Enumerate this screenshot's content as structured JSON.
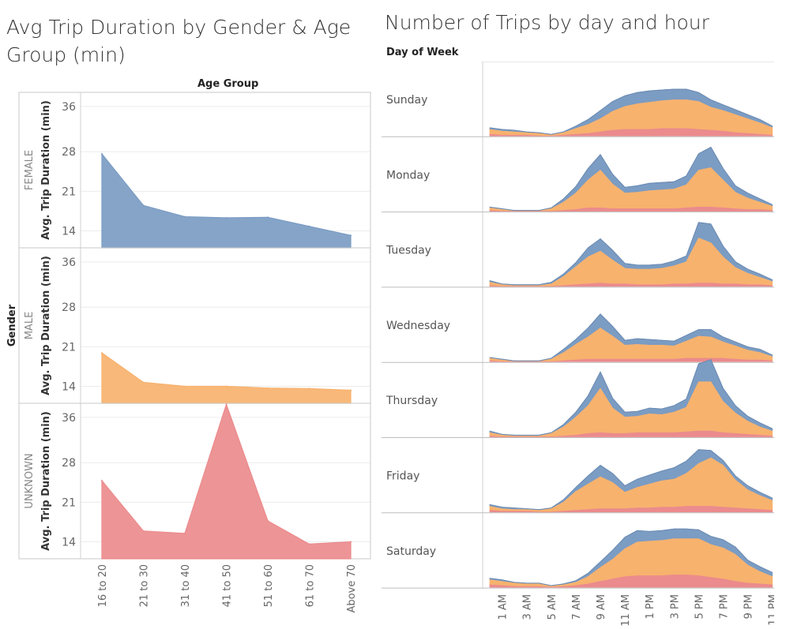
{
  "left": {
    "title": "Avg Trip Duration by Gender & Age Group (min)",
    "column_header": "Age Group",
    "row_header": "Gender",
    "measure_label": "Avg. Trip Duration (min)"
  },
  "right": {
    "title": "Number of Trips by day and hour",
    "row_header": "Day of Week"
  },
  "chart_data": [
    {
      "type": "area",
      "title": "Avg Trip Duration by Gender & Age Group (min)",
      "xlabel": "Age Group",
      "ylabel": "Avg. Trip Duration (min)",
      "facet_label": "Gender",
      "categories": [
        "16 to 20",
        "21 to 30",
        "31 to 40",
        "41 to 50",
        "51 to 60",
        "61 to 70",
        "Above 70"
      ],
      "y_ticks": [
        14,
        21,
        28,
        36
      ],
      "ylim": [
        11,
        38.5
      ],
      "grid": true,
      "panels": [
        {
          "name": "FEMALE",
          "color": "#7b9cc3",
          "values": [
            27.6,
            18.5,
            16.5,
            16.3,
            16.4,
            14.8,
            13.2
          ]
        },
        {
          "name": "MALE",
          "color": "#f7b26e",
          "values": [
            19.9,
            14.7,
            14.0,
            14.0,
            13.7,
            13.6,
            13.3
          ]
        },
        {
          "name": "UNKNOWN",
          "color": "#eb8b8d",
          "values": [
            24.8,
            15.9,
            15.5,
            38.3,
            17.7,
            13.6,
            14.0
          ]
        }
      ]
    },
    {
      "type": "area",
      "title": "Number of Trips by day and hour",
      "facet_label": "Day of Week",
      "stacked": true,
      "grid": false,
      "hours": [
        "12 AM",
        "1 AM",
        "2 AM",
        "3 AM",
        "4 AM",
        "5 AM",
        "6 AM",
        "7 AM",
        "8 AM",
        "9 AM",
        "10 AM",
        "11 AM",
        "12 PM",
        "1 PM",
        "2 PM",
        "3 PM",
        "4 PM",
        "5 PM",
        "6 PM",
        "7 PM",
        "8 PM",
        "9 PM",
        "10 PM",
        "11 PM"
      ],
      "tick_labels": [
        "1 AM",
        "3 AM",
        "5 AM",
        "7 AM",
        "9 AM",
        "11 AM",
        "1 PM",
        "3 PM",
        "5 PM",
        "7 PM",
        "9 PM",
        "11 PM"
      ],
      "y_max": 82,
      "series_colors": {
        "UNKNOWN": "#eb8b8d",
        "MALE": "#f7b26e",
        "FEMALE": "#7b9cc3"
      },
      "days": [
        {
          "name": "Sunday",
          "unknown": [
            2,
            1,
            1,
            1,
            0,
            0,
            1,
            2,
            3,
            5,
            7,
            8,
            8,
            8,
            9,
            9,
            9,
            8,
            7,
            6,
            4,
            3,
            2,
            1
          ],
          "male": [
            6,
            5,
            4,
            3,
            3,
            2,
            3,
            7,
            11,
            16,
            23,
            28,
            31,
            33,
            34,
            35,
            35,
            34,
            28,
            25,
            22,
            18,
            14,
            9
          ],
          "female": [
            2,
            2,
            2,
            1,
            1,
            0,
            1,
            3,
            6,
            10,
            12,
            13,
            14,
            14,
            13,
            13,
            13,
            11,
            9,
            7,
            6,
            5,
            4,
            2
          ]
        },
        {
          "name": "Monday",
          "unknown": [
            1,
            0,
            0,
            0,
            0,
            0,
            1,
            2,
            4,
            4,
            3,
            3,
            3,
            3,
            3,
            3,
            4,
            5,
            5,
            4,
            3,
            2,
            2,
            1
          ],
          "male": [
            3,
            2,
            1,
            1,
            1,
            3,
            10,
            20,
            34,
            46,
            30,
            19,
            20,
            22,
            23,
            24,
            28,
            45,
            48,
            34,
            20,
            14,
            9,
            5
          ],
          "female": [
            1,
            1,
            0,
            0,
            0,
            1,
            4,
            8,
            14,
            19,
            12,
            7,
            8,
            9,
            9,
            9,
            11,
            20,
            25,
            14,
            8,
            6,
            4,
            2
          ]
        },
        {
          "name": "Tuesday",
          "unknown": [
            1,
            0,
            0,
            0,
            0,
            0,
            1,
            2,
            3,
            4,
            3,
            3,
            2,
            2,
            2,
            3,
            3,
            4,
            4,
            3,
            3,
            2,
            2,
            1
          ],
          "male": [
            4,
            2,
            1,
            1,
            1,
            3,
            11,
            22,
            33,
            39,
            29,
            19,
            19,
            19,
            20,
            22,
            27,
            55,
            49,
            33,
            20,
            14,
            9,
            5
          ],
          "female": [
            2,
            1,
            1,
            1,
            1,
            2,
            3,
            5,
            11,
            15,
            12,
            6,
            5,
            5,
            5,
            6,
            7,
            19,
            23,
            13,
            7,
            5,
            4,
            2
          ]
        },
        {
          "name": "Wednesday",
          "unknown": [
            1,
            0,
            0,
            0,
            0,
            0,
            1,
            2,
            3,
            3,
            3,
            3,
            3,
            3,
            3,
            3,
            4,
            4,
            4,
            4,
            3,
            2,
            2,
            1
          ],
          "male": [
            3,
            2,
            1,
            1,
            1,
            3,
            10,
            19,
            27,
            38,
            28,
            17,
            18,
            17,
            17,
            16,
            21,
            27,
            26,
            20,
            16,
            12,
            9,
            5
          ],
          "female": [
            1,
            1,
            0,
            0,
            0,
            1,
            4,
            6,
            11,
            17,
            12,
            6,
            7,
            7,
            6,
            6,
            7,
            8,
            9,
            6,
            5,
            4,
            4,
            2
          ]
        },
        {
          "name": "Thursday",
          "unknown": [
            1,
            0,
            0,
            0,
            0,
            0,
            1,
            2,
            4,
            5,
            4,
            4,
            5,
            5,
            5,
            5,
            6,
            7,
            7,
            5,
            4,
            3,
            2,
            1
          ],
          "male": [
            4,
            2,
            1,
            1,
            1,
            4,
            11,
            22,
            34,
            54,
            31,
            20,
            20,
            23,
            22,
            25,
            30,
            60,
            60,
            38,
            25,
            16,
            10,
            6
          ],
          "female": [
            2,
            1,
            1,
            1,
            1,
            1,
            3,
            6,
            12,
            20,
            12,
            6,
            6,
            7,
            7,
            8,
            10,
            22,
            27,
            16,
            9,
            6,
            5,
            3
          ]
        },
        {
          "name": "Friday",
          "unknown": [
            2,
            1,
            1,
            1,
            0,
            0,
            1,
            2,
            3,
            4,
            4,
            4,
            5,
            5,
            6,
            6,
            7,
            7,
            7,
            6,
            5,
            4,
            3,
            2
          ],
          "male": [
            5,
            3,
            2,
            2,
            2,
            4,
            11,
            23,
            31,
            39,
            32,
            20,
            25,
            29,
            32,
            34,
            40,
            52,
            59,
            51,
            34,
            23,
            17,
            12
          ],
          "female": [
            2,
            2,
            2,
            1,
            1,
            1,
            3,
            5,
            10,
            14,
            11,
            8,
            10,
            11,
            12,
            14,
            15,
            17,
            9,
            6,
            5,
            5,
            4,
            3
          ]
        },
        {
          "name": "Saturday",
          "unknown": [
            3,
            2,
            1,
            1,
            1,
            0,
            1,
            2,
            4,
            7,
            10,
            13,
            14,
            14,
            14,
            15,
            15,
            14,
            12,
            10,
            7,
            5,
            4,
            3
          ],
          "male": [
            6,
            5,
            4,
            3,
            3,
            2,
            2,
            4,
            9,
            17,
            24,
            34,
            41,
            42,
            43,
            44,
            44,
            45,
            40,
            38,
            33,
            22,
            15,
            10
          ],
          "female": [
            2,
            2,
            1,
            1,
            1,
            0,
            1,
            2,
            4,
            7,
            11,
            14,
            14,
            12,
            12,
            12,
            12,
            11,
            10,
            10,
            9,
            6,
            6,
            5
          ]
        }
      ]
    }
  ]
}
